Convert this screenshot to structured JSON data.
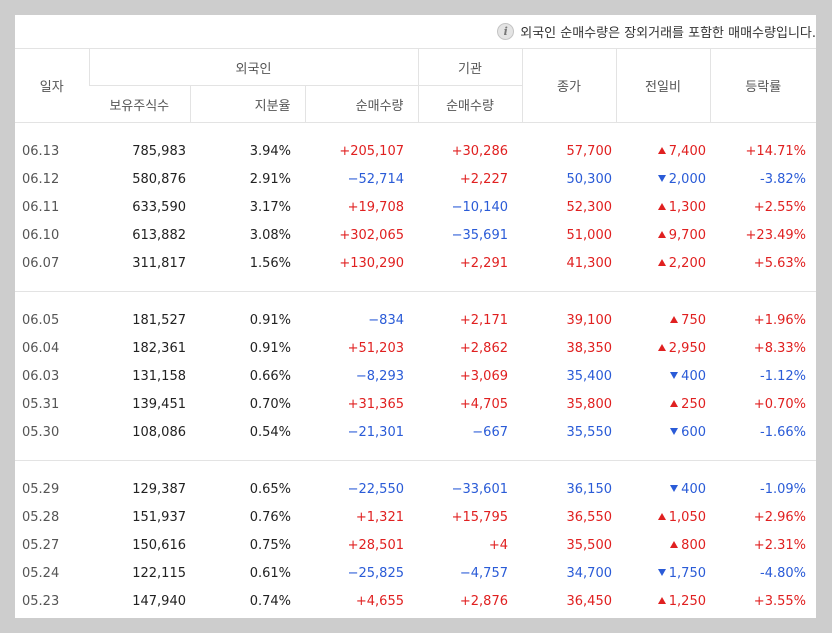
{
  "notice": "외국인 순매수량은 장외거래를 포함한 매매수량입니다.",
  "headers": {
    "date": "일자",
    "foreign": "외국인",
    "institution": "기관",
    "close": "종가",
    "change": "전일비",
    "rate": "등락률",
    "holdings": "보유주식수",
    "share": "지분율",
    "foreign_net": "순매수량",
    "inst_net": "순매수량"
  },
  "colors": {
    "up": "#e02020",
    "down": "#2a5bd7"
  },
  "groups": [
    [
      {
        "date": "06.13",
        "holdings": "785,983",
        "share": "3.94%",
        "foreign_net": "+205,107",
        "inst_net": "+30,286",
        "close": "57,700",
        "change": "7,400",
        "dir": "up",
        "rate": "+14.71%"
      },
      {
        "date": "06.12",
        "holdings": "580,876",
        "share": "2.91%",
        "foreign_net": "−52,714",
        "inst_net": "+2,227",
        "close": "50,300",
        "change": "2,000",
        "dir": "down",
        "rate": "-3.82%"
      },
      {
        "date": "06.11",
        "holdings": "633,590",
        "share": "3.17%",
        "foreign_net": "+19,708",
        "inst_net": "−10,140",
        "close": "52,300",
        "change": "1,300",
        "dir": "up",
        "rate": "+2.55%"
      },
      {
        "date": "06.10",
        "holdings": "613,882",
        "share": "3.08%",
        "foreign_net": "+302,065",
        "inst_net": "−35,691",
        "close": "51,000",
        "change": "9,700",
        "dir": "up",
        "rate": "+23.49%"
      },
      {
        "date": "06.07",
        "holdings": "311,817",
        "share": "1.56%",
        "foreign_net": "+130,290",
        "inst_net": "+2,291",
        "close": "41,300",
        "change": "2,200",
        "dir": "up",
        "rate": "+5.63%"
      }
    ],
    [
      {
        "date": "06.05",
        "holdings": "181,527",
        "share": "0.91%",
        "foreign_net": "−834",
        "inst_net": "+2,171",
        "close": "39,100",
        "change": "750",
        "dir": "up",
        "rate": "+1.96%"
      },
      {
        "date": "06.04",
        "holdings": "182,361",
        "share": "0.91%",
        "foreign_net": "+51,203",
        "inst_net": "+2,862",
        "close": "38,350",
        "change": "2,950",
        "dir": "up",
        "rate": "+8.33%"
      },
      {
        "date": "06.03",
        "holdings": "131,158",
        "share": "0.66%",
        "foreign_net": "−8,293",
        "inst_net": "+3,069",
        "close": "35,400",
        "change": "400",
        "dir": "down",
        "rate": "-1.12%"
      },
      {
        "date": "05.31",
        "holdings": "139,451",
        "share": "0.70%",
        "foreign_net": "+31,365",
        "inst_net": "+4,705",
        "close": "35,800",
        "change": "250",
        "dir": "up",
        "rate": "+0.70%"
      },
      {
        "date": "05.30",
        "holdings": "108,086",
        "share": "0.54%",
        "foreign_net": "−21,301",
        "inst_net": "−667",
        "close": "35,550",
        "change": "600",
        "dir": "down",
        "rate": "-1.66%"
      }
    ],
    [
      {
        "date": "05.29",
        "holdings": "129,387",
        "share": "0.65%",
        "foreign_net": "−22,550",
        "inst_net": "−33,601",
        "close": "36,150",
        "change": "400",
        "dir": "down",
        "rate": "-1.09%"
      },
      {
        "date": "05.28",
        "holdings": "151,937",
        "share": "0.76%",
        "foreign_net": "+1,321",
        "inst_net": "+15,795",
        "close": "36,550",
        "change": "1,050",
        "dir": "up",
        "rate": "+2.96%"
      },
      {
        "date": "05.27",
        "holdings": "150,616",
        "share": "0.75%",
        "foreign_net": "+28,501",
        "inst_net": "+4",
        "close": "35,500",
        "change": "800",
        "dir": "up",
        "rate": "+2.31%"
      },
      {
        "date": "05.24",
        "holdings": "122,115",
        "share": "0.61%",
        "foreign_net": "−25,825",
        "inst_net": "−4,757",
        "close": "34,700",
        "change": "1,750",
        "dir": "down",
        "rate": "-4.80%"
      },
      {
        "date": "05.23",
        "holdings": "147,940",
        "share": "0.74%",
        "foreign_net": "+4,655",
        "inst_net": "+2,876",
        "close": "36,450",
        "change": "1,250",
        "dir": "up",
        "rate": "+3.55%"
      }
    ]
  ]
}
